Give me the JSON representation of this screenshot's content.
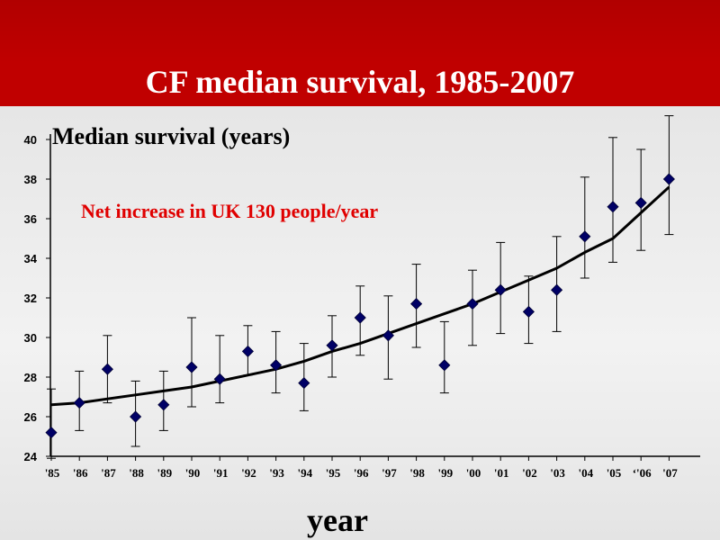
{
  "header": {
    "title": "CF median survival, 1985-2007"
  },
  "colors": {
    "banner": "#c00000",
    "marker": "#000066",
    "annotation": "#e00000",
    "trend": "#000000"
  },
  "chart_data": {
    "type": "scatter",
    "title": "CF median survival, 1985-2007",
    "xlabel": "year",
    "ylabel": "Median survival  (years)",
    "ylim": [
      24,
      40
    ],
    "yticks": [
      24,
      26,
      28,
      30,
      32,
      34,
      36,
      38,
      40
    ],
    "categories": [
      "'85",
      "'86",
      "'87",
      "'88",
      "'89",
      "'90",
      "'91",
      "'92",
      "'93",
      "'94",
      "'95",
      "'96",
      "'97",
      "'98",
      "'99",
      "'00",
      "'01",
      "'02",
      "'03",
      "'04",
      "'05",
      "‘'06",
      "'07"
    ],
    "series": [
      {
        "values": [
          25.2,
          26.7,
          28.4,
          26.0,
          26.6,
          28.5,
          27.9,
          29.3,
          28.6,
          27.7,
          29.6,
          31.0,
          30.1,
          31.7,
          28.6,
          31.7,
          32.4,
          31.3,
          32.4,
          35.1,
          36.6,
          36.8,
          38.0
        ],
        "lower": [
          23.9,
          25.3,
          26.7,
          24.5,
          25.3,
          26.5,
          26.7,
          28.1,
          27.2,
          26.3,
          28.0,
          29.1,
          27.9,
          29.5,
          27.2,
          29.6,
          30.2,
          29.7,
          30.3,
          33.0,
          33.8,
          34.4,
          35.2
        ],
        "upper": [
          27.4,
          28.3,
          30.1,
          27.8,
          28.3,
          31.0,
          30.1,
          30.6,
          30.3,
          29.7,
          31.1,
          32.6,
          32.1,
          33.7,
          30.8,
          33.4,
          34.8,
          33.1,
          35.1,
          38.1,
          40.1,
          39.5,
          41.2
        ]
      }
    ],
    "trend": [
      26.6,
      26.7,
      26.9,
      27.1,
      27.3,
      27.5,
      27.8,
      28.1,
      28.4,
      28.8,
      29.3,
      29.7,
      30.2,
      30.7,
      31.2,
      31.7,
      32.3,
      32.9,
      33.5,
      34.3,
      35.0,
      36.3,
      37.6
    ],
    "annotation": "Net increase in UK 130 people/year",
    "grid": false
  }
}
